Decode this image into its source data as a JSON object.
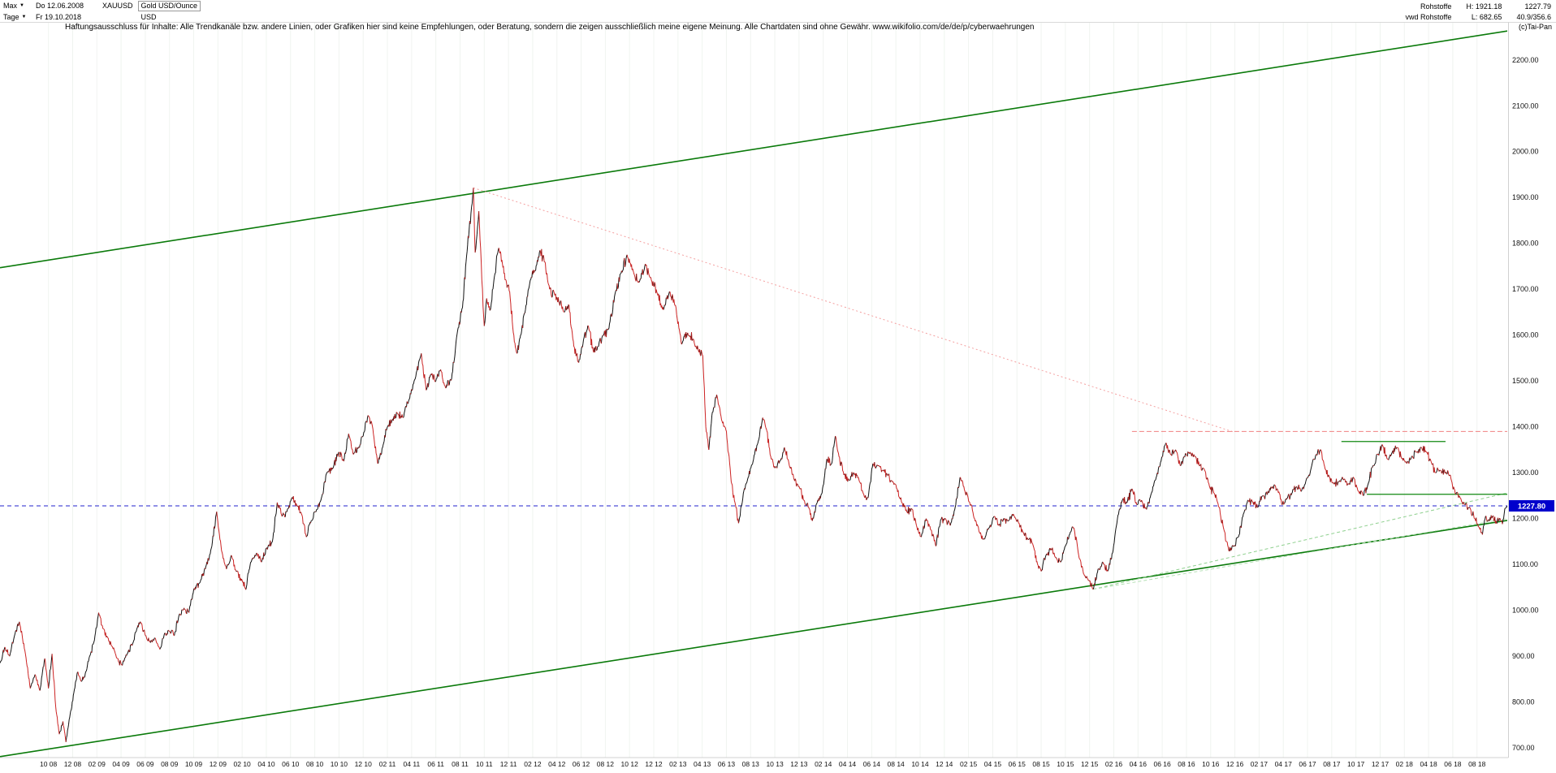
{
  "header": {
    "range_selector": "Max",
    "start_date": "Do 12.06.2008",
    "symbol": "XAUUSD",
    "instrument_name": "Gold USD/Ounce",
    "period_selector": "Tage",
    "end_date": "Fr 19.10.2018",
    "currency": "USD",
    "right": {
      "category": "Rohstoffe",
      "high": "H: 1921.18",
      "last": "1227.79",
      "source": "vwd Rohstoffe",
      "low": "L: 682.65",
      "range": "40.9/356.6"
    },
    "copyright": "(c)Tai-Pan"
  },
  "disclaimer": "Haftungsausschluss für Inhalte: Alle Trendkanäle bzw. andere Linien, oder Grafiken hier sind keine Empfehlungen, oder Beratung, sondern die zeigen ausschließlich meine eigene Meinung. Alle Chartdaten sind ohne Gewähr.  www.wikifolio.com/de/de/p/cyberwaehrungen",
  "chart_data": {
    "type": "line",
    "title": "Gold USD/Ounce",
    "symbol": "XAUUSD",
    "x_start": "2008-06",
    "x_end": "2018-10",
    "months_total": 124.5,
    "ylim": [
      679,
      2281
    ],
    "grid": "faint-vertical",
    "legend": "none",
    "y_tick_values": [
      2200,
      2100,
      2000,
      1900,
      1800,
      1700,
      1600,
      1500,
      1400,
      1300,
      1200,
      1100,
      1000,
      900,
      800,
      700
    ],
    "x_ticks": {
      "start_offset": 4,
      "step": 2,
      "labels": [
        "10 08",
        "12 08",
        "02 09",
        "04 09",
        "06 09",
        "08 09",
        "10 09",
        "12 09",
        "02 10",
        "04 10",
        "06 10",
        "08 10",
        "10 10",
        "12 10",
        "02 11",
        "04 11",
        "06 11",
        "08 11",
        "10 11",
        "12 11",
        "02 12",
        "04 12",
        "06 12",
        "08 12",
        "10 12",
        "12 12",
        "02 13",
        "04 13",
        "06 13",
        "08 13",
        "10 13",
        "12 13",
        "02 14",
        "04 14",
        "06 14",
        "08 14",
        "10 14",
        "12 14",
        "02 15",
        "04 15",
        "06 15",
        "08 15",
        "10 15",
        "12 15",
        "02 16",
        "04 16",
        "06 16",
        "08 16",
        "10 16",
        "12 16",
        "02 17",
        "04 17",
        "06 17",
        "08 17",
        "10 17",
        "12 17",
        "02 18",
        "04 18",
        "06 18",
        "08 18"
      ]
    },
    "last_price": 1227.8,
    "last_price_label": "1227.80",
    "alltime_high": 1921.18,
    "alltime_low": 682.65,
    "series_colors": {
      "up": "#111111",
      "down": "#cc2222",
      "tag_blue": "#0000cc"
    },
    "trend_lines": [
      {
        "name": "channel-lower",
        "from": [
          0,
          681
        ],
        "to": [
          124.5,
          1196
        ],
        "color": "#0a7a0a",
        "width": 1.6,
        "dash": null
      },
      {
        "name": "channel-upper",
        "from": [
          0,
          1747
        ],
        "to": [
          124.5,
          2263
        ],
        "color": "#0a7a0a",
        "width": 1.6,
        "dash": null
      },
      {
        "name": "downtrend-from-2011-high",
        "from": [
          39.1,
          1921
        ],
        "to": [
          102,
          1388
        ],
        "color": "#f4a0a0",
        "width": 1,
        "dash": "2,3"
      },
      {
        "name": "resistance-1390",
        "from": [
          93.5,
          1390
        ],
        "to": [
          124.5,
          1390
        ],
        "color": "#f08080",
        "width": 1,
        "dash": "6,3"
      },
      {
        "name": "uptrend-2016-a",
        "from": [
          90.3,
          1046
        ],
        "to": [
          124.5,
          1256
        ],
        "color": "#8fd08f",
        "width": 1,
        "dash": "4,3"
      },
      {
        "name": "uptrend-2016-b",
        "from": [
          90.3,
          1046
        ],
        "to": [
          124.5,
          1200
        ],
        "color": "#b5e0b5",
        "width": 1,
        "dash": "4,3"
      },
      {
        "name": "resistance-2018",
        "from": [
          110.8,
          1368
        ],
        "to": [
          119.4,
          1368
        ],
        "color": "#118811",
        "width": 1.2,
        "dash": null
      },
      {
        "name": "support-2018",
        "from": [
          112.9,
          1253
        ],
        "to": [
          124.5,
          1253
        ],
        "color": "#118811",
        "width": 1.2,
        "dash": null
      },
      {
        "name": "last-price-line",
        "from": [
          0,
          1227.8
        ],
        "to": [
          124.5,
          1227.8
        ],
        "color": "#2020cc",
        "width": 1,
        "dash": "5,4"
      }
    ],
    "price_anchors_month_value": [
      [
        0,
        885
      ],
      [
        0.4,
        920
      ],
      [
        0.8,
        900
      ],
      [
        1.2,
        945
      ],
      [
        1.6,
        975
      ],
      [
        2.1,
        905
      ],
      [
        2.5,
        830
      ],
      [
        2.9,
        860
      ],
      [
        3.3,
        825
      ],
      [
        3.7,
        895
      ],
      [
        4.0,
        830
      ],
      [
        4.3,
        905
      ],
      [
        4.6,
        790
      ],
      [
        4.9,
        730
      ],
      [
        5.2,
        758
      ],
      [
        5.45,
        713
      ],
      [
        5.8,
        775
      ],
      [
        6.1,
        820
      ],
      [
        6.4,
        865
      ],
      [
        6.7,
        845
      ],
      [
        7.0,
        855
      ],
      [
        7.4,
        900
      ],
      [
        7.8,
        935
      ],
      [
        8.15,
        995
      ],
      [
        8.5,
        960
      ],
      [
        8.9,
        940
      ],
      [
        9.3,
        920
      ],
      [
        9.7,
        895
      ],
      [
        10.1,
        880
      ],
      [
        10.5,
        905
      ],
      [
        11.0,
        930
      ],
      [
        11.3,
        960
      ],
      [
        11.6,
        975
      ],
      [
        12.0,
        945
      ],
      [
        12.4,
        930
      ],
      [
        12.8,
        940
      ],
      [
        13.2,
        915
      ],
      [
        13.6,
        950
      ],
      [
        14.0,
        955
      ],
      [
        14.4,
        945
      ],
      [
        14.8,
        990
      ],
      [
        15.2,
        1005
      ],
      [
        15.6,
        995
      ],
      [
        16.0,
        1045
      ],
      [
        16.5,
        1060
      ],
      [
        17.0,
        1095
      ],
      [
        17.5,
        1140
      ],
      [
        17.9,
        1215
      ],
      [
        18.3,
        1130
      ],
      [
        18.7,
        1090
      ],
      [
        19.1,
        1120
      ],
      [
        19.5,
        1085
      ],
      [
        20.0,
        1065
      ],
      [
        20.3,
        1045
      ],
      [
        20.7,
        1105
      ],
      [
        21.2,
        1125
      ],
      [
        21.6,
        1105
      ],
      [
        22.0,
        1135
      ],
      [
        22.5,
        1150
      ],
      [
        22.9,
        1235
      ],
      [
        23.3,
        1205
      ],
      [
        23.7,
        1215
      ],
      [
        24.1,
        1245
      ],
      [
        24.5,
        1230
      ],
      [
        24.9,
        1210
      ],
      [
        25.3,
        1160
      ],
      [
        25.7,
        1195
      ],
      [
        26.1,
        1215
      ],
      [
        26.5,
        1240
      ],
      [
        27.0,
        1300
      ],
      [
        27.5,
        1310
      ],
      [
        28.0,
        1345
      ],
      [
        28.4,
        1325
      ],
      [
        28.8,
        1385
      ],
      [
        29.2,
        1340
      ],
      [
        29.6,
        1355
      ],
      [
        30.0,
        1380
      ],
      [
        30.4,
        1425
      ],
      [
        30.8,
        1395
      ],
      [
        31.2,
        1320
      ],
      [
        31.6,
        1355
      ],
      [
        32.0,
        1400
      ],
      [
        32.4,
        1415
      ],
      [
        32.8,
        1430
      ],
      [
        33.3,
        1420
      ],
      [
        33.8,
        1460
      ],
      [
        34.3,
        1505
      ],
      [
        34.8,
        1560
      ],
      [
        35.2,
        1480
      ],
      [
        35.6,
        1515
      ],
      [
        36.0,
        1500
      ],
      [
        36.4,
        1525
      ],
      [
        36.8,
        1485
      ],
      [
        37.3,
        1505
      ],
      [
        37.8,
        1610
      ],
      [
        38.2,
        1660
      ],
      [
        38.5,
        1760
      ],
      [
        38.75,
        1830
      ],
      [
        38.95,
        1880
      ],
      [
        39.1,
        1921
      ],
      [
        39.25,
        1780
      ],
      [
        39.4,
        1820
      ],
      [
        39.55,
        1870
      ],
      [
        39.7,
        1790
      ],
      [
        39.85,
        1700
      ],
      [
        40.0,
        1620
      ],
      [
        40.2,
        1680
      ],
      [
        40.5,
        1655
      ],
      [
        40.8,
        1720
      ],
      [
        41.2,
        1790
      ],
      [
        41.5,
        1755
      ],
      [
        41.8,
        1720
      ],
      [
        42.1,
        1695
      ],
      [
        42.4,
        1605
      ],
      [
        42.7,
        1560
      ],
      [
        43.0,
        1600
      ],
      [
        43.4,
        1655
      ],
      [
        43.8,
        1720
      ],
      [
        44.2,
        1740
      ],
      [
        44.6,
        1785
      ],
      [
        45.0,
        1760
      ],
      [
        45.4,
        1700
      ],
      [
        45.8,
        1690
      ],
      [
        46.2,
        1670
      ],
      [
        46.6,
        1650
      ],
      [
        47.0,
        1665
      ],
      [
        47.4,
        1575
      ],
      [
        47.8,
        1540
      ],
      [
        48.2,
        1590
      ],
      [
        48.6,
        1620
      ],
      [
        49.0,
        1565
      ],
      [
        49.4,
        1575
      ],
      [
        49.8,
        1600
      ],
      [
        50.3,
        1615
      ],
      [
        50.8,
        1690
      ],
      [
        51.3,
        1735
      ],
      [
        51.8,
        1775
      ],
      [
        52.3,
        1740
      ],
      [
        52.8,
        1715
      ],
      [
        53.3,
        1755
      ],
      [
        53.8,
        1720
      ],
      [
        54.3,
        1690
      ],
      [
        54.8,
        1655
      ],
      [
        55.3,
        1695
      ],
      [
        55.8,
        1665
      ],
      [
        56.3,
        1580
      ],
      [
        56.8,
        1605
      ],
      [
        57.3,
        1590
      ],
      [
        57.7,
        1565
      ],
      [
        58.05,
        1555
      ],
      [
        58.3,
        1400
      ],
      [
        58.55,
        1350
      ],
      [
        58.8,
        1425
      ],
      [
        59.2,
        1470
      ],
      [
        59.6,
        1415
      ],
      [
        60.0,
        1390
      ],
      [
        60.4,
        1280
      ],
      [
        60.75,
        1230
      ],
      [
        61.0,
        1190
      ],
      [
        61.4,
        1255
      ],
      [
        61.8,
        1290
      ],
      [
        62.2,
        1325
      ],
      [
        62.6,
        1365
      ],
      [
        63.0,
        1420
      ],
      [
        63.3,
        1395
      ],
      [
        63.7,
        1330
      ],
      [
        64.0,
        1310
      ],
      [
        64.4,
        1325
      ],
      [
        64.8,
        1355
      ],
      [
        65.2,
        1315
      ],
      [
        65.6,
        1285
      ],
      [
        66.0,
        1270
      ],
      [
        66.4,
        1240
      ],
      [
        66.8,
        1225
      ],
      [
        67.1,
        1195
      ],
      [
        67.5,
        1235
      ],
      [
        67.9,
        1255
      ],
      [
        68.3,
        1330
      ],
      [
        68.7,
        1320
      ],
      [
        69.0,
        1380
      ],
      [
        69.3,
        1335
      ],
      [
        69.7,
        1295
      ],
      [
        70.1,
        1285
      ],
      [
        70.5,
        1300
      ],
      [
        70.9,
        1290
      ],
      [
        71.3,
        1255
      ],
      [
        71.7,
        1245
      ],
      [
        72.1,
        1320
      ],
      [
        72.5,
        1315
      ],
      [
        72.9,
        1305
      ],
      [
        73.3,
        1295
      ],
      [
        73.7,
        1280
      ],
      [
        74.1,
        1265
      ],
      [
        74.5,
        1235
      ],
      [
        74.9,
        1215
      ],
      [
        75.3,
        1222
      ],
      [
        75.7,
        1185
      ],
      [
        76.1,
        1160
      ],
      [
        76.5,
        1200
      ],
      [
        76.9,
        1175
      ],
      [
        77.3,
        1140
      ],
      [
        77.7,
        1198
      ],
      [
        78.1,
        1200
      ],
      [
        78.5,
        1185
      ],
      [
        78.9,
        1225
      ],
      [
        79.3,
        1290
      ],
      [
        79.7,
        1260
      ],
      [
        80.1,
        1235
      ],
      [
        80.5,
        1200
      ],
      [
        80.9,
        1170
      ],
      [
        81.3,
        1155
      ],
      [
        81.7,
        1180
      ],
      [
        82.1,
        1205
      ],
      [
        82.5,
        1185
      ],
      [
        82.9,
        1200
      ],
      [
        83.3,
        1195
      ],
      [
        83.7,
        1210
      ],
      [
        84.1,
        1195
      ],
      [
        84.5,
        1170
      ],
      [
        84.9,
        1155
      ],
      [
        85.3,
        1145
      ],
      [
        85.7,
        1100
      ],
      [
        86.0,
        1085
      ],
      [
        86.4,
        1120
      ],
      [
        86.8,
        1135
      ],
      [
        87.2,
        1115
      ],
      [
        87.6,
        1105
      ],
      [
        88.0,
        1140
      ],
      [
        88.4,
        1170
      ],
      [
        88.7,
        1180
      ],
      [
        89.1,
        1120
      ],
      [
        89.5,
        1080
      ],
      [
        89.9,
        1065
      ],
      [
        90.3,
        1046
      ],
      [
        90.7,
        1090
      ],
      [
        91.1,
        1105
      ],
      [
        91.5,
        1085
      ],
      [
        91.9,
        1125
      ],
      [
        92.3,
        1200
      ],
      [
        92.7,
        1240
      ],
      [
        93.1,
        1235
      ],
      [
        93.5,
        1265
      ],
      [
        93.9,
        1230
      ],
      [
        94.3,
        1240
      ],
      [
        94.7,
        1220
      ],
      [
        95.1,
        1255
      ],
      [
        95.5,
        1290
      ],
      [
        95.9,
        1325
      ],
      [
        96.3,
        1365
      ],
      [
        96.7,
        1340
      ],
      [
        97.1,
        1350
      ],
      [
        97.5,
        1315
      ],
      [
        97.9,
        1340
      ],
      [
        98.3,
        1345
      ],
      [
        98.7,
        1335
      ],
      [
        99.1,
        1315
      ],
      [
        99.5,
        1305
      ],
      [
        99.9,
        1270
      ],
      [
        100.3,
        1255
      ],
      [
        100.7,
        1225
      ],
      [
        101.1,
        1175
      ],
      [
        101.5,
        1130
      ],
      [
        101.9,
        1140
      ],
      [
        102.3,
        1160
      ],
      [
        102.7,
        1210
      ],
      [
        103.1,
        1240
      ],
      [
        103.5,
        1235
      ],
      [
        103.9,
        1225
      ],
      [
        104.3,
        1250
      ],
      [
        104.7,
        1255
      ],
      [
        105.1,
        1270
      ],
      [
        105.5,
        1265
      ],
      [
        105.9,
        1230
      ],
      [
        106.3,
        1245
      ],
      [
        106.7,
        1255
      ],
      [
        107.1,
        1270
      ],
      [
        107.5,
        1260
      ],
      [
        107.9,
        1285
      ],
      [
        108.3,
        1310
      ],
      [
        108.7,
        1340
      ],
      [
        109.1,
        1350
      ],
      [
        109.4,
        1315
      ],
      [
        109.8,
        1290
      ],
      [
        110.2,
        1275
      ],
      [
        110.6,
        1280
      ],
      [
        111.0,
        1285
      ],
      [
        111.4,
        1275
      ],
      [
        111.8,
        1290
      ],
      [
        112.2,
        1260
      ],
      [
        112.6,
        1250
      ],
      [
        113.0,
        1275
      ],
      [
        113.4,
        1315
      ],
      [
        113.8,
        1340
      ],
      [
        114.2,
        1360
      ],
      [
        114.6,
        1330
      ],
      [
        115.0,
        1345
      ],
      [
        115.4,
        1355
      ],
      [
        115.8,
        1330
      ],
      [
        116.2,
        1320
      ],
      [
        116.6,
        1335
      ],
      [
        117.0,
        1345
      ],
      [
        117.4,
        1355
      ],
      [
        117.8,
        1345
      ],
      [
        118.2,
        1325
      ],
      [
        118.6,
        1300
      ],
      [
        119.0,
        1305
      ],
      [
        119.4,
        1300
      ],
      [
        119.8,
        1295
      ],
      [
        120.2,
        1255
      ],
      [
        120.6,
        1245
      ],
      [
        121.0,
        1230
      ],
      [
        121.4,
        1225
      ],
      [
        121.8,
        1200
      ],
      [
        122.2,
        1180
      ],
      [
        122.45,
        1165
      ],
      [
        122.7,
        1205
      ],
      [
        123.0,
        1195
      ],
      [
        123.3,
        1205
      ],
      [
        123.6,
        1190
      ],
      [
        123.9,
        1200
      ],
      [
        124.1,
        1188
      ],
      [
        124.3,
        1222
      ],
      [
        124.5,
        1228
      ]
    ]
  }
}
